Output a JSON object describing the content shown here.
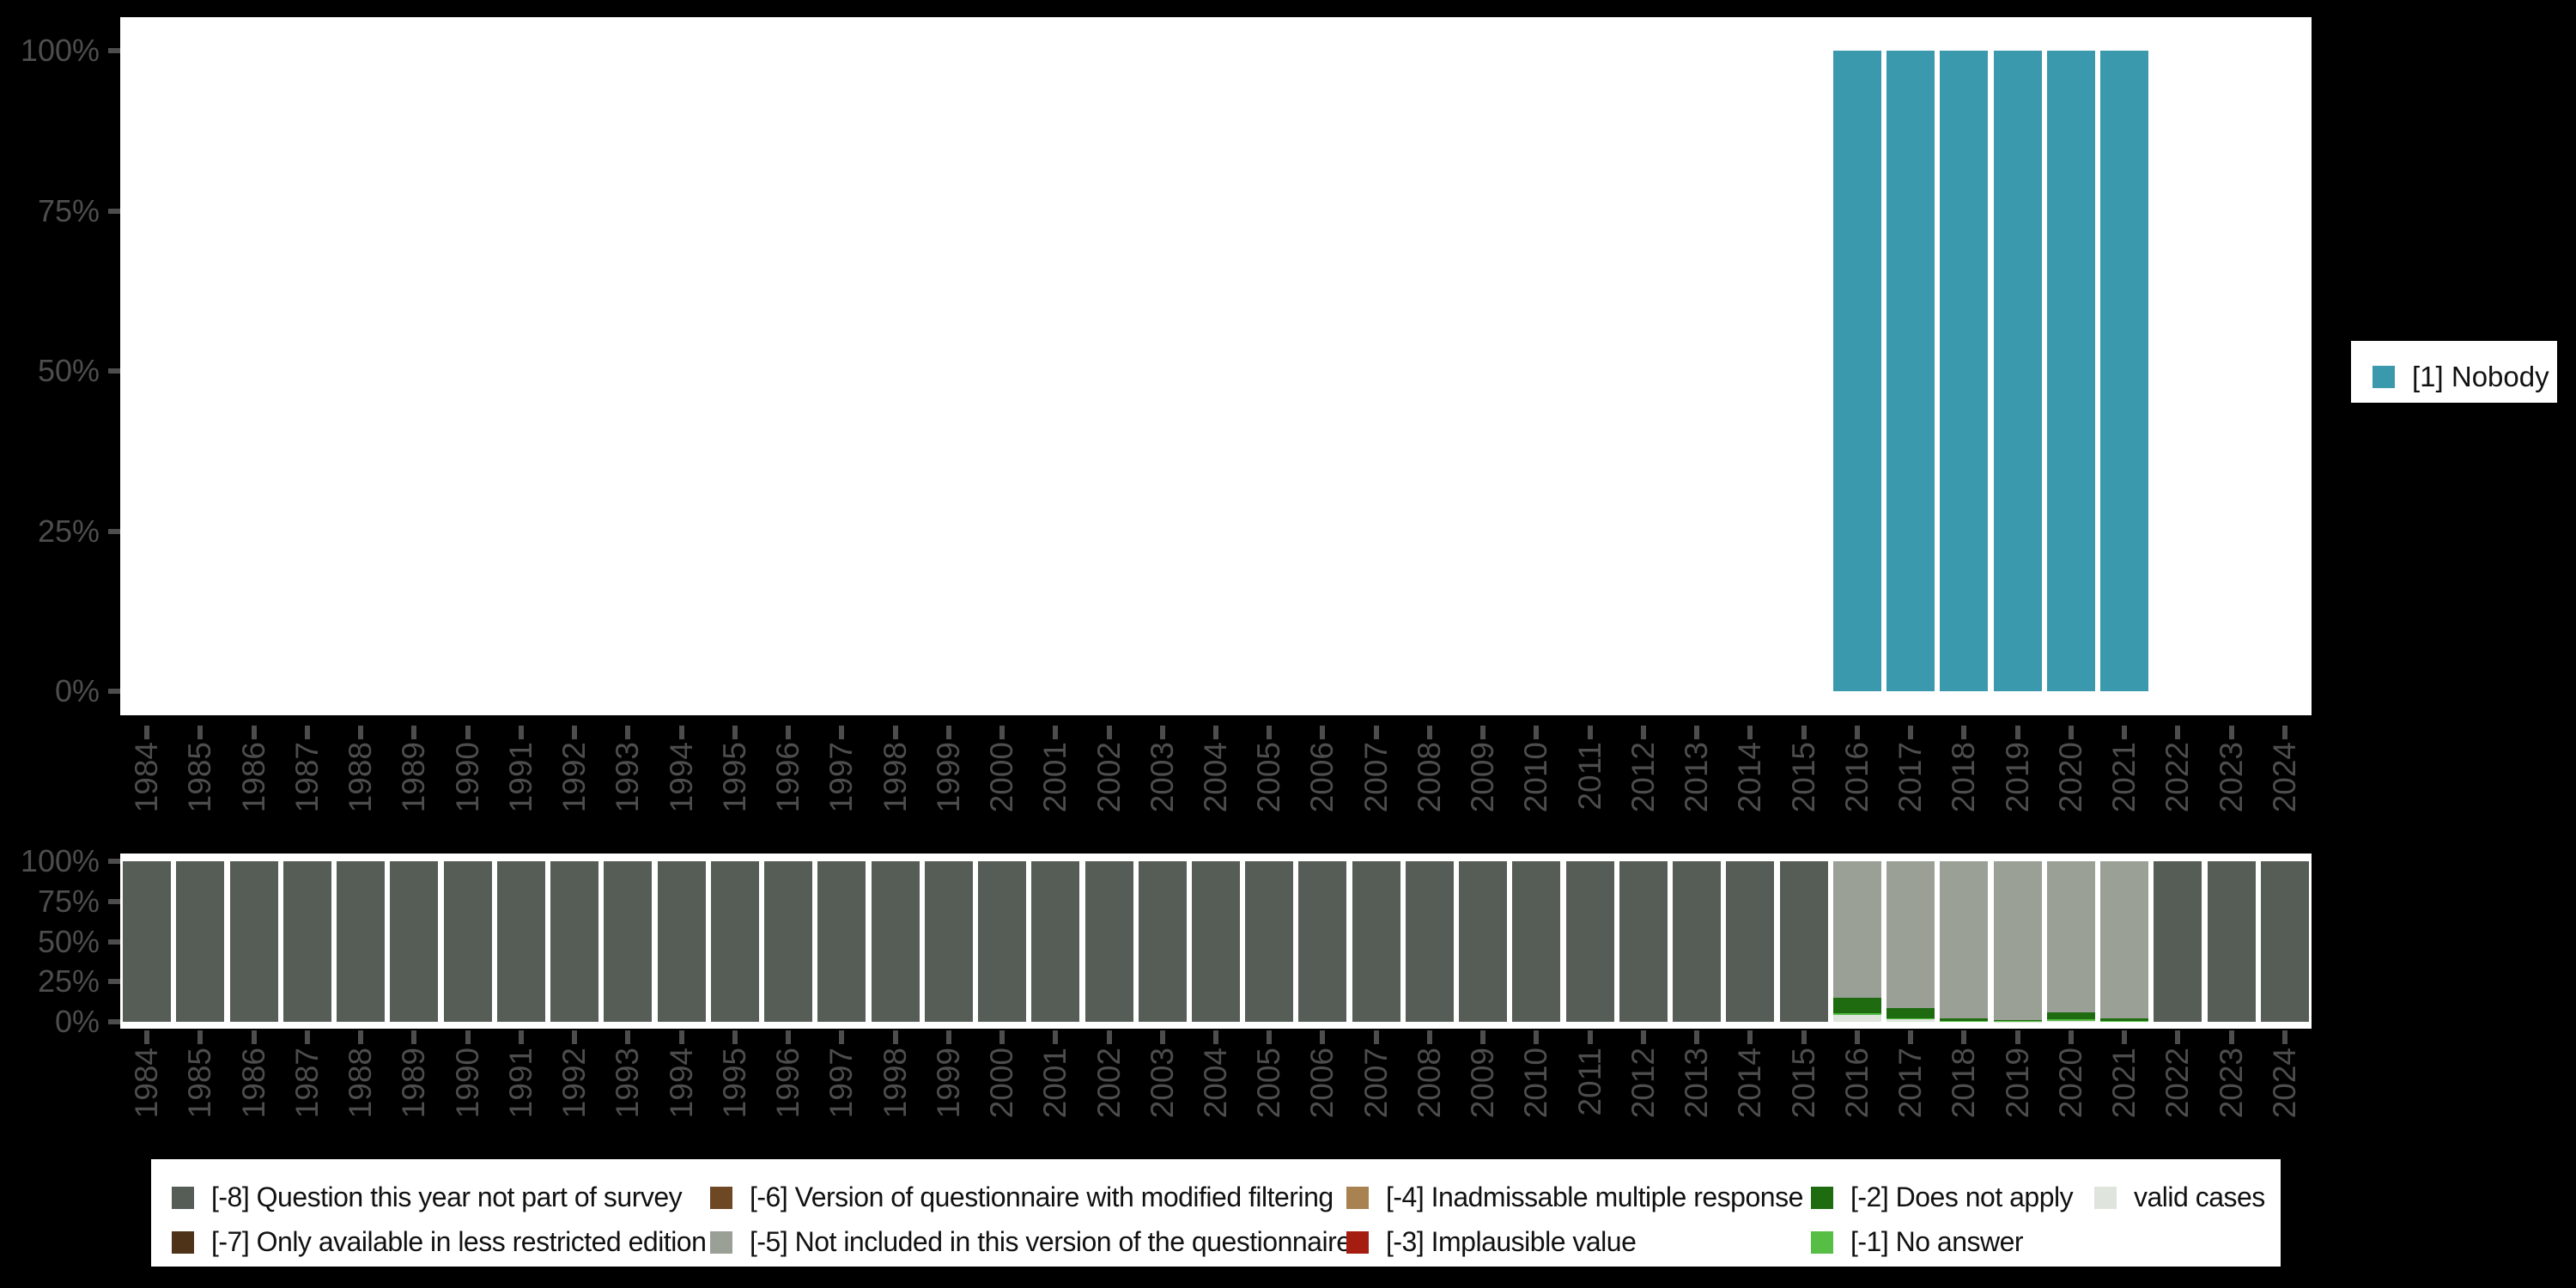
{
  "background_color": "#000000",
  "axis": {
    "tick_color": "#4d4d4d",
    "label_color": "#4d4d4d"
  },
  "years": [
    "1984",
    "1985",
    "1986",
    "1987",
    "1988",
    "1989",
    "1990",
    "1991",
    "1992",
    "1993",
    "1994",
    "1995",
    "1996",
    "1997",
    "1998",
    "1999",
    "2000",
    "2001",
    "2002",
    "2003",
    "2004",
    "2005",
    "2006",
    "2007",
    "2008",
    "2009",
    "2010",
    "2011",
    "2012",
    "2013",
    "2014",
    "2015",
    "2016",
    "2017",
    "2018",
    "2019",
    "2020",
    "2021",
    "2022",
    "2023",
    "2024"
  ],
  "right_legend": {
    "items": [
      {
        "label": "[1] Nobody",
        "color": "#3b99ae"
      }
    ]
  },
  "chart_data": [
    {
      "id": "values-chart",
      "type": "bar",
      "title": "",
      "xlabel": "",
      "ylabel": "",
      "ylim": [
        0,
        100
      ],
      "yticks": [
        "0%",
        "25%",
        "50%",
        "75%",
        "100%"
      ],
      "grid": false,
      "legend_position": "right",
      "categories": [
        "1984",
        "1985",
        "1986",
        "1987",
        "1988",
        "1989",
        "1990",
        "1991",
        "1992",
        "1993",
        "1994",
        "1995",
        "1996",
        "1997",
        "1998",
        "1999",
        "2000",
        "2001",
        "2002",
        "2003",
        "2004",
        "2005",
        "2006",
        "2007",
        "2008",
        "2009",
        "2010",
        "2011",
        "2012",
        "2013",
        "2014",
        "2015",
        "2016",
        "2017",
        "2018",
        "2019",
        "2020",
        "2021",
        "2022",
        "2023",
        "2024"
      ],
      "series": [
        {
          "name": "[1] Nobody",
          "color": "#3b99ae",
          "values": [
            0,
            0,
            0,
            0,
            0,
            0,
            0,
            0,
            0,
            0,
            0,
            0,
            0,
            0,
            0,
            0,
            0,
            0,
            0,
            0,
            0,
            0,
            0,
            0,
            0,
            0,
            0,
            0,
            0,
            0,
            0,
            0,
            100,
            100,
            100,
            100,
            100,
            100,
            0,
            0,
            0
          ]
        }
      ]
    },
    {
      "id": "missing-values-chart",
      "type": "stacked-bar",
      "title": "",
      "xlabel": "",
      "ylabel": "",
      "ylim": [
        0,
        100
      ],
      "yticks": [
        "0%",
        "25%",
        "50%",
        "75%",
        "100%"
      ],
      "grid": false,
      "legend_position": "bottom",
      "categories": [
        "1984",
        "1985",
        "1986",
        "1987",
        "1988",
        "1989",
        "1990",
        "1991",
        "1992",
        "1993",
        "1994",
        "1995",
        "1996",
        "1997",
        "1998",
        "1999",
        "2000",
        "2001",
        "2002",
        "2003",
        "2004",
        "2005",
        "2006",
        "2007",
        "2008",
        "2009",
        "2010",
        "2011",
        "2012",
        "2013",
        "2014",
        "2015",
        "2016",
        "2017",
        "2018",
        "2019",
        "2020",
        "2021",
        "2022",
        "2023",
        "2024"
      ],
      "series": [
        {
          "name": "[-8] Question this year not part of survey",
          "color": "#565d56",
          "values": [
            100,
            100,
            100,
            100,
            100,
            100,
            100,
            100,
            100,
            100,
            100,
            100,
            100,
            100,
            100,
            100,
            100,
            100,
            100,
            100,
            100,
            100,
            100,
            100,
            100,
            100,
            100,
            100,
            100,
            100,
            100,
            100,
            0,
            0,
            0,
            0,
            0,
            0,
            100,
            100,
            100
          ]
        },
        {
          "name": "[-7] Only available in less restricted edition",
          "color": "#4f3318",
          "values": [
            0,
            0,
            0,
            0,
            0,
            0,
            0,
            0,
            0,
            0,
            0,
            0,
            0,
            0,
            0,
            0,
            0,
            0,
            0,
            0,
            0,
            0,
            0,
            0,
            0,
            0,
            0,
            0,
            0,
            0,
            0,
            0,
            0,
            0,
            0,
            0,
            0,
            0,
            0,
            0,
            0
          ]
        },
        {
          "name": "[-6] Version of questionnaire with modified filtering",
          "color": "#6e4724",
          "values": [
            0,
            0,
            0,
            0,
            0,
            0,
            0,
            0,
            0,
            0,
            0,
            0,
            0,
            0,
            0,
            0,
            0,
            0,
            0,
            0,
            0,
            0,
            0,
            0,
            0,
            0,
            0,
            0,
            0,
            0,
            0,
            0,
            0,
            0,
            0,
            0,
            0,
            0,
            0,
            0,
            0
          ]
        },
        {
          "name": "[-5] Not included in this version of the questionnaire",
          "color": "#9aa096",
          "values": [
            0,
            0,
            0,
            0,
            0,
            0,
            0,
            0,
            0,
            0,
            0,
            0,
            0,
            0,
            0,
            0,
            0,
            0,
            0,
            0,
            0,
            0,
            0,
            0,
            0,
            0,
            0,
            0,
            0,
            0,
            0,
            0,
            85.2,
            91.2,
            98.1,
            98.7,
            93.9,
            97.7,
            0,
            0,
            0
          ]
        },
        {
          "name": "[-4] Inadmissable multiple response",
          "color": "#a98251",
          "values": [
            0,
            0,
            0,
            0,
            0,
            0,
            0,
            0,
            0,
            0,
            0,
            0,
            0,
            0,
            0,
            0,
            0,
            0,
            0,
            0,
            0,
            0,
            0,
            0,
            0,
            0,
            0,
            0,
            0,
            0,
            0,
            0,
            0,
            0,
            0,
            0,
            0,
            0,
            0,
            0,
            0
          ]
        },
        {
          "name": "[-3] Implausible value",
          "color": "#a51d11",
          "values": [
            0,
            0,
            0,
            0,
            0,
            0,
            0,
            0,
            0,
            0,
            0,
            0,
            0,
            0,
            0,
            0,
            0,
            0,
            0,
            0,
            0,
            0,
            0,
            0,
            0,
            0,
            0,
            0,
            0,
            0,
            0,
            0,
            0,
            0,
            0,
            0,
            0,
            0,
            0,
            0,
            0
          ]
        },
        {
          "name": "[-2] Does not apply",
          "color": "#1e6b10",
          "values": [
            0,
            0,
            0,
            0,
            0,
            0,
            0,
            0,
            0,
            0,
            0,
            0,
            0,
            0,
            0,
            0,
            0,
            0,
            0,
            0,
            0,
            0,
            0,
            0,
            0,
            0,
            0,
            0,
            0,
            0,
            0,
            0,
            9.5,
            6.5,
            1.4,
            0.9,
            4.5,
            1.6,
            0,
            0,
            0
          ]
        },
        {
          "name": "[-1] No answer",
          "color": "#56be45",
          "values": [
            0,
            0,
            0,
            0,
            0,
            0,
            0,
            0,
            0,
            0,
            0,
            0,
            0,
            0,
            0,
            0,
            0,
            0,
            0,
            0,
            0,
            0,
            0,
            0,
            0,
            0,
            0,
            0,
            0,
            0,
            0,
            0,
            1.1,
            0.5,
            0.2,
            0.2,
            1.0,
            0.4,
            0,
            0,
            0
          ]
        },
        {
          "name": "valid cases",
          "color": "#dfe4dc",
          "values": [
            0,
            0,
            0,
            0,
            0,
            0,
            0,
            0,
            0,
            0,
            0,
            0,
            0,
            0,
            0,
            0,
            0,
            0,
            0,
            0,
            0,
            0,
            0,
            0,
            0,
            0,
            0,
            0,
            0,
            0,
            0,
            0,
            4.2,
            1.8,
            0.3,
            0.2,
            0.6,
            0.3,
            0,
            0,
            0
          ]
        }
      ]
    }
  ]
}
